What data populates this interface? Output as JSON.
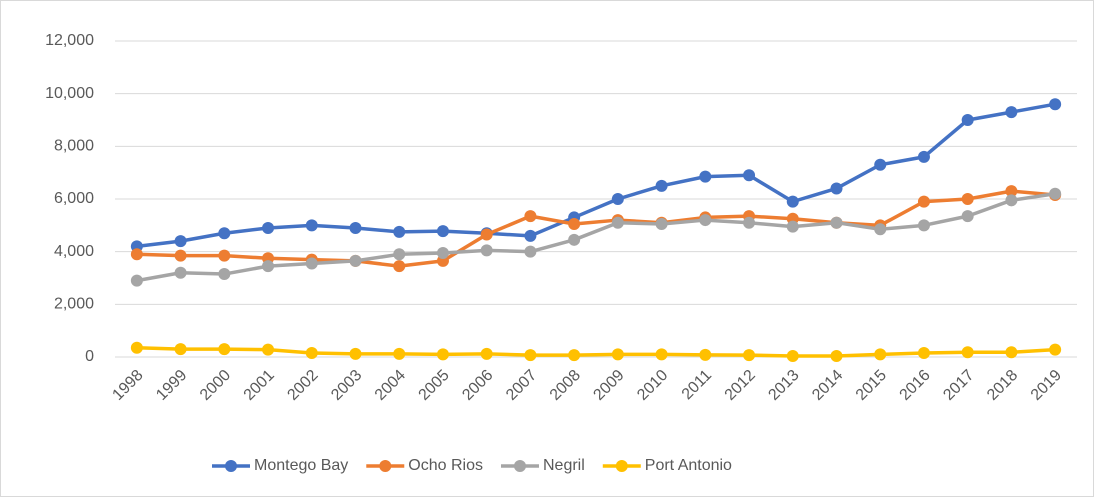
{
  "chart_data": {
    "type": "line",
    "categories": [
      "1998",
      "1999",
      "2000",
      "2001",
      "2002",
      "2003",
      "2004",
      "2005",
      "2006",
      "2007",
      "2008",
      "2009",
      "2010",
      "2011",
      "2012",
      "2013",
      "2014",
      "2015",
      "2016",
      "2017",
      "2018",
      "2019"
    ],
    "series": [
      {
        "name": "Montego Bay",
        "color": "#4472c4",
        "values": [
          4200,
          4400,
          4700,
          4900,
          5000,
          4900,
          4750,
          4780,
          4700,
          4600,
          5300,
          6000,
          6500,
          6850,
          6900,
          5900,
          6400,
          7300,
          7600,
          9000,
          9300,
          9600
        ]
      },
      {
        "name": "Ocho Rios",
        "color": "#ed7d31",
        "values": [
          3900,
          3850,
          3850,
          3750,
          3700,
          3650,
          3450,
          3650,
          4650,
          5350,
          5050,
          5200,
          5100,
          5300,
          5350,
          5250,
          5100,
          5000,
          5900,
          6000,
          6300,
          6150
        ]
      },
      {
        "name": "Negril",
        "color": "#a5a5a5",
        "values": [
          2900,
          3200,
          3150,
          3450,
          3550,
          3650,
          3900,
          3950,
          4050,
          4000,
          4450,
          5100,
          5050,
          5200,
          5100,
          4950,
          5100,
          4850,
          5000,
          5350,
          5950,
          6200
        ]
      },
      {
        "name": "Port Antonio",
        "color": "#ffc000",
        "values": [
          350,
          300,
          300,
          280,
          150,
          120,
          120,
          100,
          120,
          70,
          70,
          100,
          100,
          80,
          70,
          40,
          40,
          100,
          150,
          180,
          180,
          280
        ]
      }
    ],
    "ylim": [
      0,
      12000
    ],
    "yticks": [
      0,
      {
        "value": 2000,
        "label": "2,000"
      },
      {
        "value": 4000,
        "label": "4,000"
      },
      {
        "value": 6000,
        "label": "6,000"
      },
      {
        "value": 8000,
        "label": "8,000"
      },
      {
        "value": 10000,
        "label": "10,000"
      },
      {
        "value": 12000,
        "label": "12,000"
      }
    ],
    "grid": true,
    "legend": "bottom"
  }
}
